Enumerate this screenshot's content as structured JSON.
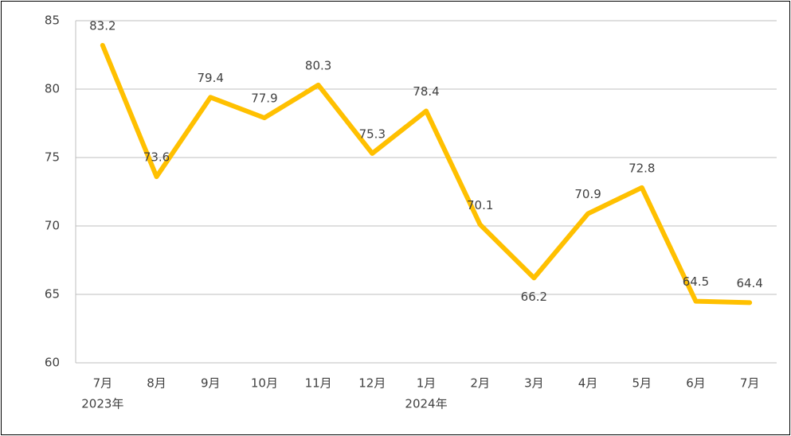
{
  "chart_data": {
    "type": "line",
    "categories": [
      "7月",
      "8月",
      "9月",
      "10月",
      "11月",
      "12月",
      "1月",
      "2月",
      "3月",
      "4月",
      "5月",
      "6月",
      "7月"
    ],
    "category_years": [
      "2023年",
      null,
      null,
      null,
      null,
      null,
      "2024年",
      null,
      null,
      null,
      null,
      null,
      null
    ],
    "values": [
      83.2,
      73.6,
      79.4,
      77.9,
      80.3,
      75.3,
      78.4,
      70.1,
      66.2,
      70.9,
      72.8,
      64.5,
      64.4
    ],
    "color": "#FFC000",
    "ylim": [
      60,
      85
    ],
    "yticks": [
      60,
      65,
      70,
      75,
      80,
      85
    ],
    "grid": true
  }
}
